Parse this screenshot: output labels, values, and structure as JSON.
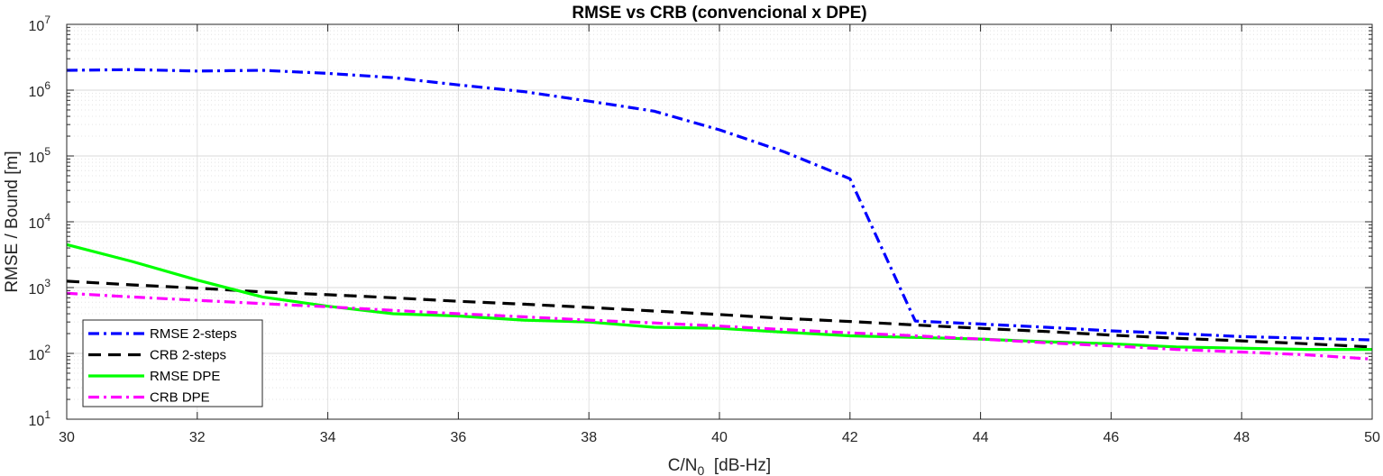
{
  "chart_data": {
    "type": "line",
    "title": "RMSE vs CRB (convencional x DPE)",
    "xlabel": {
      "main": "C/N",
      "sub": "0",
      "rest": "  [dB-Hz]"
    },
    "ylabel": "RMSE / Bound [m]",
    "xlim": [
      30,
      50
    ],
    "ylim": [
      10,
      10000000
    ],
    "yscale": "log",
    "grid": true,
    "minor_grid": true,
    "legend_position": "bottom-left",
    "xticks": [
      "30",
      "32",
      "34",
      "36",
      "38",
      "40",
      "42",
      "44",
      "46",
      "48",
      "50"
    ],
    "yticks": [
      {
        "base": "10",
        "exp": "1"
      },
      {
        "base": "10",
        "exp": "2"
      },
      {
        "base": "10",
        "exp": "3"
      },
      {
        "base": "10",
        "exp": "4"
      },
      {
        "base": "10",
        "exp": "5"
      },
      {
        "base": "10",
        "exp": "6"
      },
      {
        "base": "10",
        "exp": "7"
      }
    ],
    "x": [
      30,
      31,
      32,
      33,
      34,
      35,
      36,
      37,
      38,
      39,
      40,
      41,
      42,
      43,
      44,
      45,
      46,
      47,
      48,
      49,
      50
    ],
    "series": [
      {
        "name": "RMSE 2-steps",
        "color": "#0000ff",
        "style": "dashdot",
        "values": [
          2000000,
          2050000,
          1950000,
          2000000,
          1800000,
          1550000,
          1200000,
          950000,
          680000,
          480000,
          250000,
          115000,
          45000,
          310,
          280,
          250,
          220,
          200,
          180,
          170,
          160
        ]
      },
      {
        "name": "CRB 2-steps",
        "color": "#000000",
        "style": "dashed",
        "values": [
          1250,
          1100,
          980,
          860,
          780,
          700,
          620,
          560,
          500,
          440,
          390,
          340,
          305,
          270,
          240,
          215,
          190,
          170,
          155,
          140,
          125
        ]
      },
      {
        "name": "RMSE DPE",
        "color": "#00ff00",
        "style": "solid",
        "values": [
          4500,
          2500,
          1300,
          720,
          520,
          400,
          370,
          320,
          300,
          250,
          240,
          210,
          185,
          175,
          165,
          150,
          140,
          125,
          120,
          115,
          115
        ]
      },
      {
        "name": "CRB DPE",
        "color": "#ff00ff",
        "style": "dashdot",
        "values": [
          820,
          720,
          640,
          570,
          510,
          450,
          400,
          360,
          320,
          290,
          260,
          230,
          205,
          185,
          165,
          145,
          130,
          115,
          105,
          95,
          82
        ]
      }
    ]
  }
}
